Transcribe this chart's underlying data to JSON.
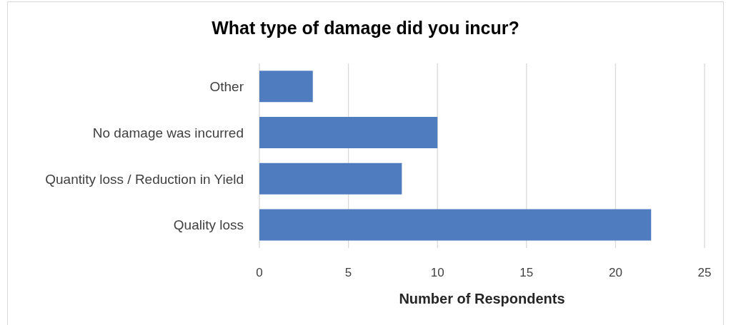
{
  "chart_data": {
    "type": "bar",
    "orientation": "horizontal",
    "title": "What type of damage did you incur?",
    "xlabel": "Number of Respondents",
    "categories": [
      "Other",
      "No damage was incurred",
      "Quantity loss / Reduction in Yield",
      "Quality loss"
    ],
    "values": [
      3,
      10,
      8,
      22
    ],
    "color": "#4f7cbf",
    "xlim": [
      0,
      25
    ],
    "xticks": [
      0,
      5,
      10,
      15,
      20,
      25
    ],
    "grid": "x"
  }
}
